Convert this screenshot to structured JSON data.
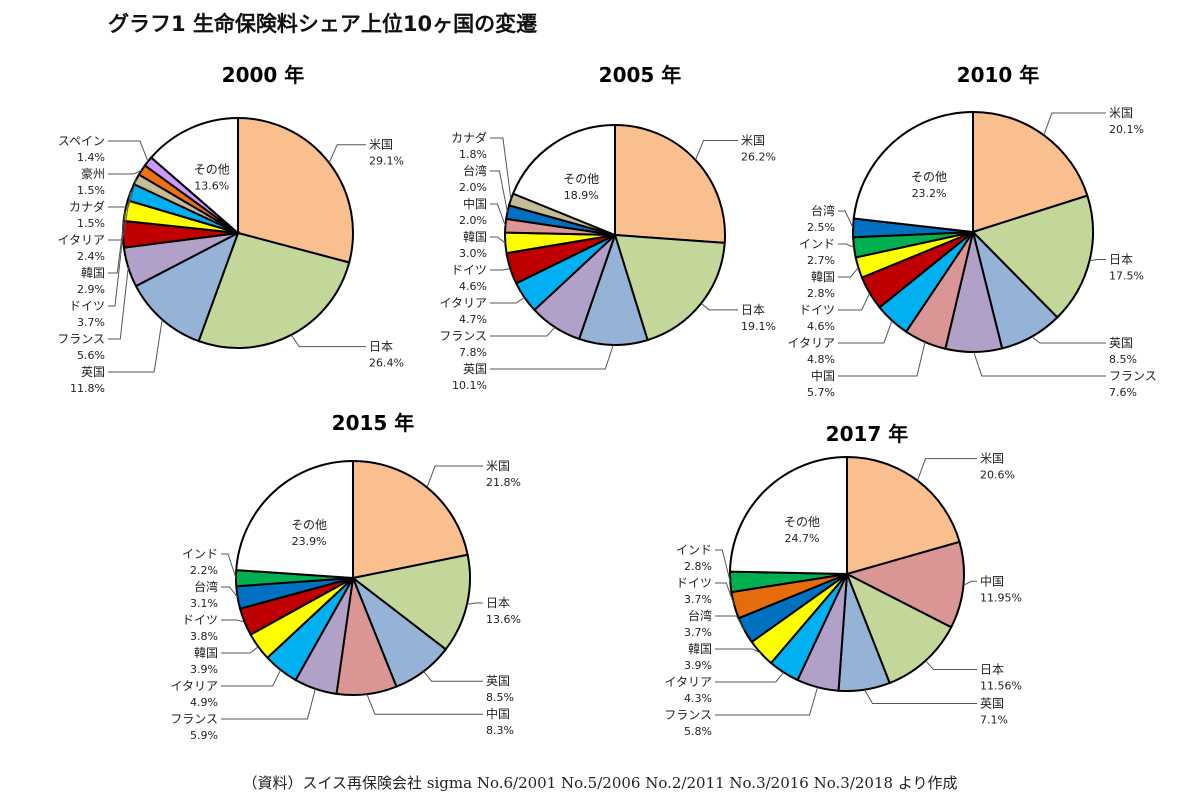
{
  "title": "グラフ1 生命保険料シェア上位10ヶ国の変遷",
  "source": "（資料）スイス再保険会社 sigma No.6/2001 No.5/2006 No.2/2011 No.3/2016 No.3/2018 より作成",
  "colors": {
    "米国": "#fabf8f",
    "日本": "#c4d79b",
    "英国": "#95b3d7",
    "フランス": "#b1a0c7",
    "ドイツ": "#c00000",
    "韓国": "#ffff00",
    "イタリア": "#00b0f0",
    "カナダ": "#c4bd97",
    "豪州": "#f07018",
    "スペイン": "#cc99ff",
    "台湾": "#0070c0",
    "中国": "#da9694",
    "インド": "#00b050",
    "その他": "#ffffff"
  },
  "chart_data": [
    {
      "type": "pie",
      "title": "2000 年",
      "slices": [
        {
          "label": "米国",
          "value": 29.1,
          "text": "29.1%"
        },
        {
          "label": "日本",
          "value": 26.4,
          "text": "26.4%"
        },
        {
          "label": "英国",
          "value": 11.8,
          "text": "11.8%"
        },
        {
          "label": "フランス",
          "value": 5.6,
          "text": "5.6%"
        },
        {
          "label": "ドイツ",
          "value": 3.7,
          "text": "3.7%"
        },
        {
          "label": "韓国",
          "value": 2.9,
          "text": "2.9%"
        },
        {
          "label": "イタリア",
          "value": 2.4,
          "text": "2.4%"
        },
        {
          "label": "カナダ",
          "value": 1.5,
          "text": "1.5%"
        },
        {
          "label": "豪州",
          "value": 1.5,
          "text": "1.5%"
        },
        {
          "label": "スペイン",
          "value": 1.4,
          "text": "1.4%"
        },
        {
          "label": "その他",
          "value": 13.6,
          "text": "13.6%"
        }
      ]
    },
    {
      "type": "pie",
      "title": "2005 年",
      "slices": [
        {
          "label": "米国",
          "value": 26.2,
          "text": "26.2%"
        },
        {
          "label": "日本",
          "value": 19.1,
          "text": "19.1%"
        },
        {
          "label": "英国",
          "value": 10.1,
          "text": "10.1%"
        },
        {
          "label": "フランス",
          "value": 7.8,
          "text": "7.8%"
        },
        {
          "label": "イタリア",
          "value": 4.7,
          "text": "4.7%"
        },
        {
          "label": "ドイツ",
          "value": 4.6,
          "text": "4.6%"
        },
        {
          "label": "韓国",
          "value": 3.0,
          "text": "3.0%"
        },
        {
          "label": "中国",
          "value": 2.0,
          "text": "2.0%"
        },
        {
          "label": "台湾",
          "value": 2.0,
          "text": "2.0%"
        },
        {
          "label": "カナダ",
          "value": 1.8,
          "text": "1.8%"
        },
        {
          "label": "その他",
          "value": 18.9,
          "text": "18.9%"
        }
      ]
    },
    {
      "type": "pie",
      "title": "2010 年",
      "slices": [
        {
          "label": "米国",
          "value": 20.1,
          "text": "20.1%"
        },
        {
          "label": "日本",
          "value": 17.5,
          "text": "17.5%"
        },
        {
          "label": "英国",
          "value": 8.5,
          "text": "8.5%"
        },
        {
          "label": "フランス",
          "value": 7.6,
          "text": "7.6%"
        },
        {
          "label": "中国",
          "value": 5.7,
          "text": "5.7%"
        },
        {
          "label": "イタリア",
          "value": 4.8,
          "text": "4.8%"
        },
        {
          "label": "ドイツ",
          "value": 4.6,
          "text": "4.6%"
        },
        {
          "label": "韓国",
          "value": 2.8,
          "text": "2.8%"
        },
        {
          "label": "インド",
          "value": 2.7,
          "text": "2.7%"
        },
        {
          "label": "台湾",
          "value": 2.5,
          "text": "2.5%"
        },
        {
          "label": "その他",
          "value": 23.2,
          "text": "23.2%"
        }
      ]
    },
    {
      "type": "pie",
      "title": "2015 年",
      "slices": [
        {
          "label": "米国",
          "value": 21.8,
          "text": "21.8%"
        },
        {
          "label": "日本",
          "value": 13.6,
          "text": "13.6%"
        },
        {
          "label": "英国",
          "value": 8.5,
          "text": "8.5%"
        },
        {
          "label": "中国",
          "value": 8.3,
          "text": "8.3%"
        },
        {
          "label": "フランス",
          "value": 5.9,
          "text": "5.9%"
        },
        {
          "label": "イタリア",
          "value": 4.9,
          "text": "4.9%"
        },
        {
          "label": "韓国",
          "value": 3.9,
          "text": "3.9%"
        },
        {
          "label": "ドイツ",
          "value": 3.8,
          "text": "3.8%"
        },
        {
          "label": "台湾",
          "value": 3.1,
          "text": "3.1%"
        },
        {
          "label": "インド",
          "value": 2.2,
          "text": "2.2%"
        },
        {
          "label": "その他",
          "value": 23.9,
          "text": "23.9%"
        }
      ]
    },
    {
      "type": "pie",
      "title": "2017 年",
      "slices": [
        {
          "label": "米国",
          "value": 20.6,
          "text": "20.6%"
        },
        {
          "label": "中国",
          "value": 11.95,
          "text": "11.95%"
        },
        {
          "label": "日本",
          "value": 11.56,
          "text": "11.56%"
        },
        {
          "label": "英国",
          "value": 7.1,
          "text": "7.1%"
        },
        {
          "label": "フランス",
          "value": 5.8,
          "text": "5.8%"
        },
        {
          "label": "イタリア",
          "value": 4.3,
          "text": "4.3%"
        },
        {
          "label": "韓国",
          "value": 3.9,
          "text": "3.9%"
        },
        {
          "label": "台湾",
          "value": 3.7,
          "text": "3.7%"
        },
        {
          "label": "ドイツ",
          "value": 3.7,
          "text": "3.7%",
          "color": "#e46c0a"
        },
        {
          "label": "インド",
          "value": 2.8,
          "text": "2.8%"
        },
        {
          "label": "その他",
          "value": 24.7,
          "text": "24.7%"
        }
      ]
    }
  ]
}
